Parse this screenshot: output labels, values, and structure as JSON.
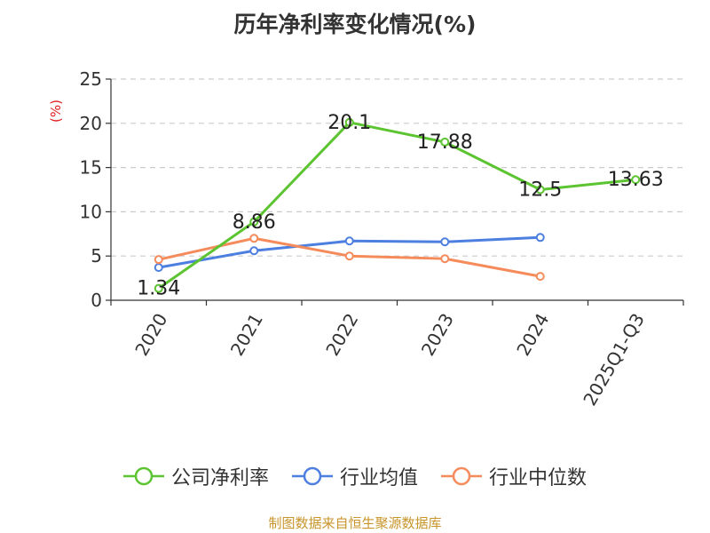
{
  "chart_data": {
    "type": "line",
    "title": "历年净利率变化情况(%)",
    "ylabel": "(%)",
    "ylabel_color": "#e02020",
    "ylim": [
      0,
      25
    ],
    "yticks": [
      "0",
      "5",
      "10",
      "15",
      "20",
      "25"
    ],
    "categories": [
      "2020",
      "2021",
      "2022",
      "2023",
      "2024",
      "2025Q1-Q3"
    ],
    "grid": true,
    "legend_position": "bottom",
    "series": [
      {
        "name": "公司净利率",
        "color": "#5cc430",
        "values": [
          1.34,
          8.86,
          20.1,
          17.88,
          12.5,
          13.63
        ],
        "labels": [
          "1.34",
          "8.86",
          "20.1",
          "17.88",
          "12.5",
          "13.63"
        ]
      },
      {
        "name": "行业均值",
        "color": "#4d7fe0",
        "values": [
          3.7,
          5.6,
          6.7,
          6.6,
          7.1,
          null
        ]
      },
      {
        "name": "行业中位数",
        "color": "#f58b5a",
        "values": [
          4.6,
          7.0,
          5.0,
          4.7,
          2.7,
          null
        ]
      }
    ],
    "source": "制图数据来自恒生聚源数据库"
  }
}
